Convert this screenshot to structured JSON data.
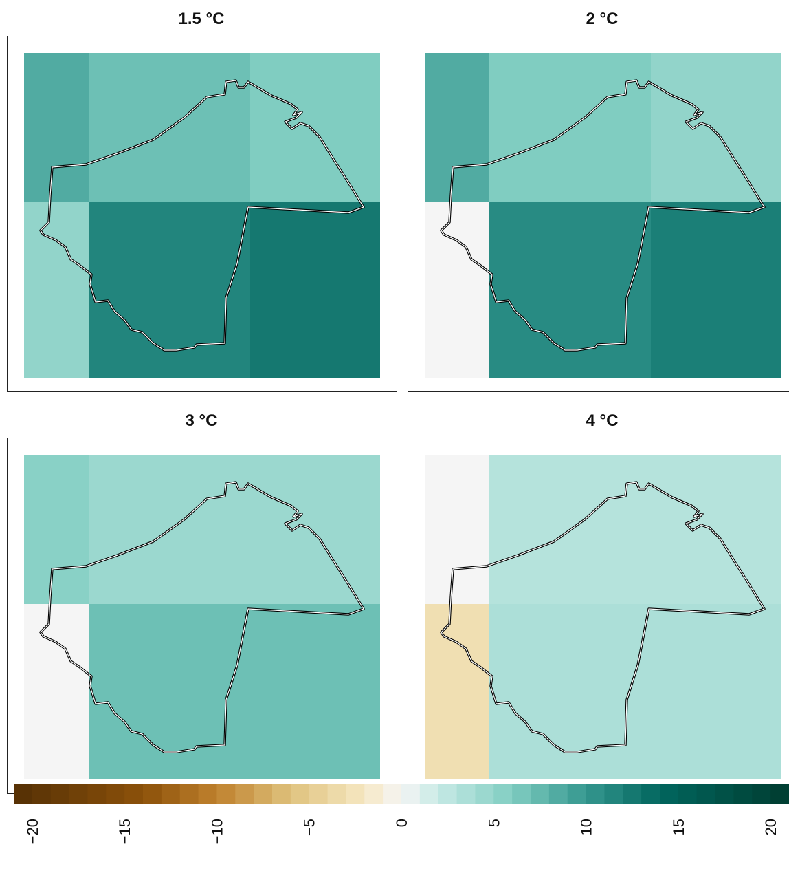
{
  "panels": [
    {
      "title": "1.5 °C",
      "cells": [
        [
          8.5,
          7,
          6
        ],
        [
          5,
          11.5,
          12.5
        ]
      ]
    },
    {
      "title": "2 °C",
      "cells": [
        [
          8.5,
          6,
          5
        ],
        [
          0,
          11,
          12
        ]
      ]
    },
    {
      "title": "3 °C",
      "cells": [
        [
          5.5,
          4.5,
          4.5
        ],
        [
          0,
          7,
          7
        ]
      ]
    },
    {
      "title": "4 °C",
      "cells": [
        [
          0,
          3,
          3
        ],
        [
          -3,
          3.5,
          3.5
        ]
      ]
    }
  ],
  "legend": {
    "ticks": [
      "−20",
      "−15",
      "−10",
      "−5",
      "0",
      "5",
      "10",
      "15",
      "20"
    ],
    "min": -21,
    "max": 21,
    "step": 1
  },
  "colors": {
    "neutral": "#f5f5f5",
    "outline": "#000000"
  }
}
